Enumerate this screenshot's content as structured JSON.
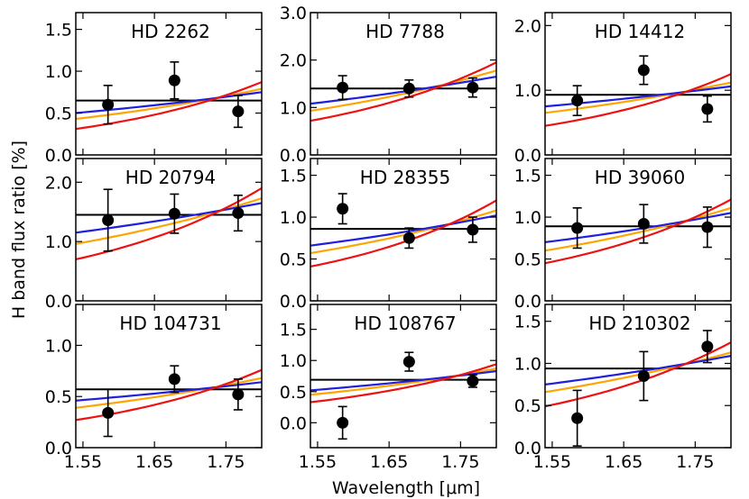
{
  "figure": {
    "ylabel": "H band flux ratio [%]",
    "xlabel": "Wavelength [μm]",
    "xticks": [
      "1.55",
      "1.65",
      "1.75"
    ]
  },
  "colors": {
    "flat": "#000000",
    "blue": "#1f1fdf",
    "orange": "#ffa500",
    "red": "#ee1111",
    "points": "#000000"
  },
  "chart_data": [
    {
      "type": "scatter",
      "title": "HD 2262",
      "xlim": [
        1.54,
        1.8
      ],
      "ylim": [
        0.0,
        1.7
      ],
      "yticks": [
        "0.0",
        "0.5",
        "1.0",
        "1.5"
      ],
      "ytick_values": [
        0.0,
        0.5,
        1.0,
        1.5
      ],
      "points": [
        {
          "x": 1.585,
          "y": 0.6,
          "yerr": 0.23
        },
        {
          "x": 1.678,
          "y": 0.89,
          "yerr": 0.22
        },
        {
          "x": 1.767,
          "y": 0.52,
          "yerr": 0.19
        }
      ],
      "models": {
        "flat": [
          0.65,
          0.65
        ],
        "blue": [
          0.5,
          0.75
        ],
        "orange": [
          0.43,
          0.79
        ],
        "red": [
          0.31,
          0.87
        ]
      }
    },
    {
      "type": "scatter",
      "title": "HD 7788",
      "xlim": [
        1.54,
        1.8
      ],
      "ylim": [
        0.0,
        3.0
      ],
      "yticks": [
        "0.0",
        "1.0",
        "2.0",
        "3.0"
      ],
      "ytick_values": [
        0.0,
        1.0,
        2.0,
        3.0
      ],
      "points": [
        {
          "x": 1.585,
          "y": 1.42,
          "yerr": 0.25
        },
        {
          "x": 1.678,
          "y": 1.4,
          "yerr": 0.18
        },
        {
          "x": 1.767,
          "y": 1.42,
          "yerr": 0.2
        }
      ],
      "models": {
        "flat": [
          1.4,
          1.4
        ],
        "blue": [
          1.08,
          1.65
        ],
        "orange": [
          0.93,
          1.78
        ],
        "red": [
          0.72,
          1.95
        ]
      }
    },
    {
      "type": "scatter",
      "title": "HD 14412",
      "xlim": [
        1.54,
        1.8
      ],
      "ylim": [
        0.0,
        2.2
      ],
      "yticks": [
        "0.0",
        "1.0",
        "2.0"
      ],
      "ytick_values": [
        0.0,
        1.0,
        2.0
      ],
      "points": [
        {
          "x": 1.585,
          "y": 0.84,
          "yerr": 0.23
        },
        {
          "x": 1.678,
          "y": 1.31,
          "yerr": 0.22
        },
        {
          "x": 1.767,
          "y": 0.71,
          "yerr": 0.2
        }
      ],
      "models": {
        "flat": [
          0.93,
          0.93
        ],
        "blue": [
          0.75,
          1.06
        ],
        "orange": [
          0.65,
          1.12
        ],
        "red": [
          0.45,
          1.25
        ]
      }
    },
    {
      "type": "scatter",
      "title": "HD 20794",
      "xlim": [
        1.54,
        1.8
      ],
      "ylim": [
        0.0,
        2.4
      ],
      "yticks": [
        "0.0",
        "1.0",
        "2.0"
      ],
      "ytick_values": [
        0.0,
        1.0,
        2.0
      ],
      "points": [
        {
          "x": 1.585,
          "y": 1.36,
          "yerr": 0.52
        },
        {
          "x": 1.678,
          "y": 1.47,
          "yerr": 0.33
        },
        {
          "x": 1.767,
          "y": 1.48,
          "yerr": 0.3
        }
      ],
      "models": {
        "flat": [
          1.45,
          1.45
        ],
        "blue": [
          1.15,
          1.65
        ],
        "orange": [
          0.96,
          1.73
        ],
        "red": [
          0.7,
          1.9
        ]
      }
    },
    {
      "type": "scatter",
      "title": "HD 28355",
      "xlim": [
        1.54,
        1.8
      ],
      "ylim": [
        0.0,
        1.7
      ],
      "yticks": [
        "0.0",
        "0.5",
        "1.0",
        "1.5"
      ],
      "ytick_values": [
        0.0,
        0.5,
        1.0,
        1.5
      ],
      "points": [
        {
          "x": 1.585,
          "y": 1.1,
          "yerr": 0.18
        },
        {
          "x": 1.678,
          "y": 0.75,
          "yerr": 0.12
        },
        {
          "x": 1.767,
          "y": 0.85,
          "yerr": 0.15
        }
      ],
      "models": {
        "flat": [
          0.86,
          0.86
        ],
        "blue": [
          0.66,
          1.02
        ],
        "orange": [
          0.57,
          1.08
        ],
        "red": [
          0.41,
          1.2
        ]
      }
    },
    {
      "type": "scatter",
      "title": "HD 39060",
      "xlim": [
        1.54,
        1.8
      ],
      "ylim": [
        0.0,
        1.7
      ],
      "yticks": [
        "0.0",
        "0.5",
        "1.0",
        "1.5"
      ],
      "ytick_values": [
        0.0,
        0.5,
        1.0,
        1.5
      ],
      "points": [
        {
          "x": 1.585,
          "y": 0.87,
          "yerr": 0.24
        },
        {
          "x": 1.678,
          "y": 0.92,
          "yerr": 0.23
        },
        {
          "x": 1.767,
          "y": 0.88,
          "yerr": 0.24
        }
      ],
      "models": {
        "flat": [
          0.89,
          0.89
        ],
        "blue": [
          0.7,
          1.05
        ],
        "orange": [
          0.6,
          1.11
        ],
        "red": [
          0.45,
          1.21
        ]
      }
    },
    {
      "type": "scatter",
      "title": "HD 104731",
      "xlim": [
        1.54,
        1.8
      ],
      "ylim": [
        0.0,
        1.4
      ],
      "yticks": [
        "0.0",
        "0.5",
        "1.0"
      ],
      "ytick_values": [
        0.0,
        0.5,
        1.0
      ],
      "points": [
        {
          "x": 1.585,
          "y": 0.34,
          "yerr": 0.23
        },
        {
          "x": 1.678,
          "y": 0.67,
          "yerr": 0.13
        },
        {
          "x": 1.767,
          "y": 0.52,
          "yerr": 0.15
        }
      ],
      "models": {
        "flat": [
          0.57,
          0.57
        ],
        "blue": [
          0.46,
          0.64
        ],
        "orange": [
          0.39,
          0.68
        ],
        "red": [
          0.27,
          0.76
        ]
      }
    },
    {
      "type": "scatter",
      "title": "HD 108767",
      "xlim": [
        1.54,
        1.8
      ],
      "ylim": [
        -0.4,
        1.9
      ],
      "yticks": [
        "0.0",
        "0.5",
        "1.0",
        "1.5"
      ],
      "ytick_values": [
        0.0,
        0.5,
        1.0,
        1.5
      ],
      "points": [
        {
          "x": 1.585,
          "y": 0.0,
          "yerr": 0.26
        },
        {
          "x": 1.678,
          "y": 0.98,
          "yerr": 0.15
        },
        {
          "x": 1.767,
          "y": 0.67,
          "yerr": 0.1
        }
      ],
      "models": {
        "flat": [
          0.69,
          0.69
        ],
        "blue": [
          0.52,
          0.83
        ],
        "orange": [
          0.45,
          0.87
        ],
        "red": [
          0.33,
          0.94
        ]
      }
    },
    {
      "type": "scatter",
      "title": "HD 210302",
      "xlim": [
        1.54,
        1.8
      ],
      "ylim": [
        0.0,
        1.7
      ],
      "yticks": [
        "0.0",
        "0.5",
        "1.0",
        "1.5"
      ],
      "ytick_values": [
        0.0,
        0.5,
        1.0,
        1.5
      ],
      "points": [
        {
          "x": 1.585,
          "y": 0.35,
          "yerr": 0.33
        },
        {
          "x": 1.678,
          "y": 0.85,
          "yerr": 0.29
        },
        {
          "x": 1.767,
          "y": 1.2,
          "yerr": 0.19
        }
      ],
      "models": {
        "flat": [
          0.94,
          0.94
        ],
        "blue": [
          0.75,
          1.09
        ],
        "orange": [
          0.66,
          1.13
        ],
        "red": [
          0.49,
          1.25
        ]
      }
    }
  ]
}
